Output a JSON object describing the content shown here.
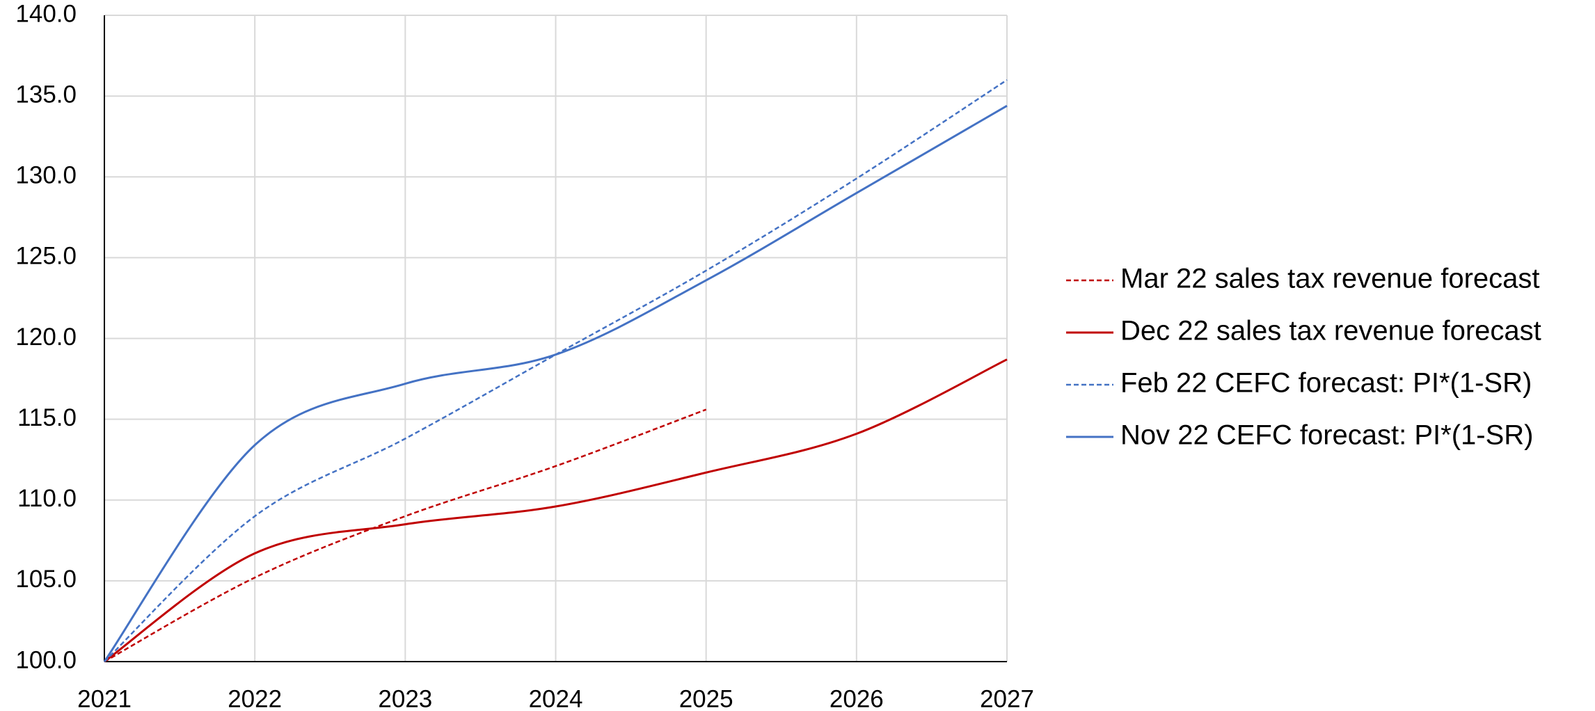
{
  "chart_data": {
    "type": "line",
    "x": [
      2021,
      2022,
      2023,
      2024,
      2025,
      2026,
      2027
    ],
    "series": [
      {
        "name": "Mar 22 sales tax revenue forecast",
        "color": "#c00000",
        "dashed": true,
        "values": [
          100,
          105.2,
          109.0,
          112.1,
          115.6,
          null,
          null
        ]
      },
      {
        "name": "Dec 22 sales tax revenue forecast",
        "color": "#c00000",
        "dashed": false,
        "values": [
          100,
          106.7,
          108.5,
          109.6,
          111.7,
          114.1,
          118.7
        ]
      },
      {
        "name": "Feb 22 CEFC forecast: PI*(1-SR)",
        "color": "#4472c4",
        "dashed": true,
        "values": [
          100,
          109.0,
          113.8,
          119.0,
          124.2,
          129.9,
          136.0
        ]
      },
      {
        "name": "Nov 22 CEFC forecast: PI*(1-SR)",
        "color": "#4472c4",
        "dashed": false,
        "values": [
          100,
          113.4,
          117.2,
          119.0,
          123.6,
          129.0,
          134.4
        ]
      }
    ],
    "xlim": [
      2021,
      2027
    ],
    "xticks": [
      2021,
      2022,
      2023,
      2024,
      2025,
      2026,
      2027
    ],
    "ylim": [
      100,
      140
    ],
    "yticks": [
      {
        "value": 100,
        "label": "100.0"
      },
      {
        "value": 105,
        "label": "105.0"
      },
      {
        "value": 110,
        "label": "110.0"
      },
      {
        "value": 115,
        "label": "115.0"
      },
      {
        "value": 120,
        "label": "120.0"
      },
      {
        "value": 125,
        "label": "125.0"
      },
      {
        "value": 130,
        "label": "130.0"
      },
      {
        "value": 135,
        "label": "135.0"
      },
      {
        "value": 140,
        "label": "140.0"
      }
    ],
    "grid": true,
    "legend": "right"
  }
}
